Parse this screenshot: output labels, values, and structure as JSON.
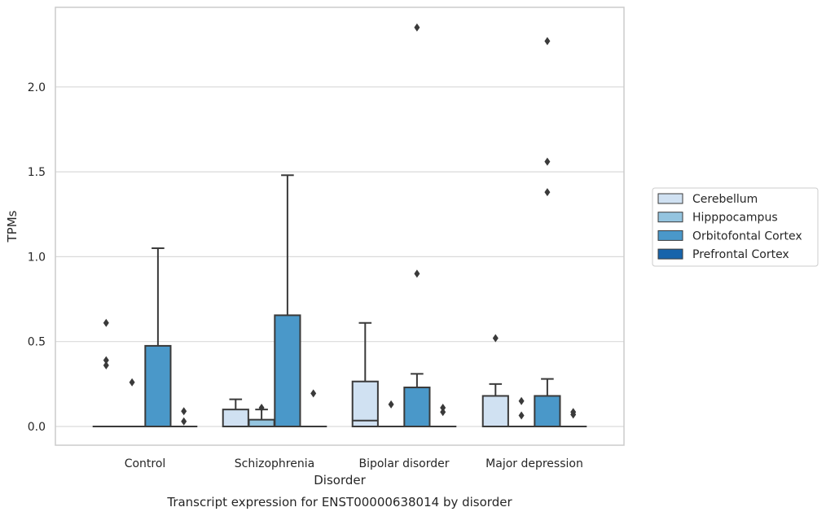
{
  "chart_data": {
    "type": "box",
    "title": "",
    "caption": "Transcript expression for ENST00000638014 by disorder",
    "xlabel": "Disorder",
    "ylabel": "TPMs",
    "ylim": [
      -0.11,
      2.48
    ],
    "yticks": [
      0.0,
      0.5,
      1.0,
      1.5,
      2.0
    ],
    "ytick_labels": [
      "0.0",
      "0.5",
      "1.0",
      "1.5",
      "2.0"
    ],
    "grid": true,
    "legend_position": "right",
    "categories": [
      "Control",
      "Schizophrenia",
      "Bipolar disorder",
      "Major depression"
    ],
    "series": [
      {
        "name": "Cerebellum",
        "color": "#d0e1f2",
        "boxes": [
          {
            "q1": 0,
            "median": 0,
            "q3": 0,
            "whisker_low": 0,
            "whisker_high": 0,
            "outliers": [
              0.61,
              0.39,
              0.36
            ]
          },
          {
            "q1": 0,
            "median": 0,
            "q3": 0.1,
            "whisker_low": 0,
            "whisker_high": 0.16,
            "outliers": []
          },
          {
            "q1": 0,
            "median": 0.035,
            "q3": 0.265,
            "whisker_low": 0,
            "whisker_high": 0.61,
            "outliers": []
          },
          {
            "q1": 0,
            "median": 0,
            "q3": 0.18,
            "whisker_low": 0,
            "whisker_high": 0.25,
            "outliers": [
              0.52
            ]
          }
        ]
      },
      {
        "name": "Hipppocampus",
        "color": "#94c4df",
        "boxes": [
          {
            "q1": 0,
            "median": 0,
            "q3": 0,
            "whisker_low": 0,
            "whisker_high": 0,
            "outliers": [
              0.26
            ]
          },
          {
            "q1": 0,
            "median": 0,
            "q3": 0.04,
            "whisker_low": 0,
            "whisker_high": 0.1,
            "outliers": [
              0.11
            ]
          },
          {
            "q1": 0,
            "median": 0,
            "q3": 0,
            "whisker_low": 0,
            "whisker_high": 0,
            "outliers": [
              0.13
            ]
          },
          {
            "q1": 0,
            "median": 0,
            "q3": 0,
            "whisker_low": 0,
            "whisker_high": 0,
            "outliers": [
              0.15,
              0.065
            ]
          }
        ]
      },
      {
        "name": "Orbitofontal Cortex",
        "color": "#4a98c9",
        "boxes": [
          {
            "q1": 0,
            "median": 0,
            "q3": 0.475,
            "whisker_low": 0,
            "whisker_high": 1.05,
            "outliers": []
          },
          {
            "q1": 0,
            "median": 0,
            "q3": 0.655,
            "whisker_low": 0,
            "whisker_high": 1.48,
            "outliers": []
          },
          {
            "q1": 0,
            "median": 0,
            "q3": 0.23,
            "whisker_low": 0,
            "whisker_high": 0.31,
            "outliers": [
              0.9,
              2.35
            ]
          },
          {
            "q1": 0,
            "median": 0,
            "q3": 0.18,
            "whisker_low": 0,
            "whisker_high": 0.28,
            "outliers": [
              1.38,
              1.56,
              2.27
            ]
          }
        ]
      },
      {
        "name": "Prefrontal Cortex",
        "color": "#1764ab",
        "boxes": [
          {
            "q1": 0,
            "median": 0,
            "q3": 0,
            "whisker_low": 0,
            "whisker_high": 0,
            "outliers": [
              0.09,
              0.03
            ]
          },
          {
            "q1": 0,
            "median": 0,
            "q3": 0,
            "whisker_low": 0,
            "whisker_high": 0,
            "outliers": [
              0.195
            ]
          },
          {
            "q1": 0,
            "median": 0,
            "q3": 0,
            "whisker_low": 0,
            "whisker_high": 0,
            "outliers": [
              0.11,
              0.085
            ]
          },
          {
            "q1": 0,
            "median": 0,
            "q3": 0,
            "whisker_low": 0,
            "whisker_high": 0,
            "outliers": [
              0.085,
              0.07
            ]
          }
        ]
      }
    ]
  }
}
